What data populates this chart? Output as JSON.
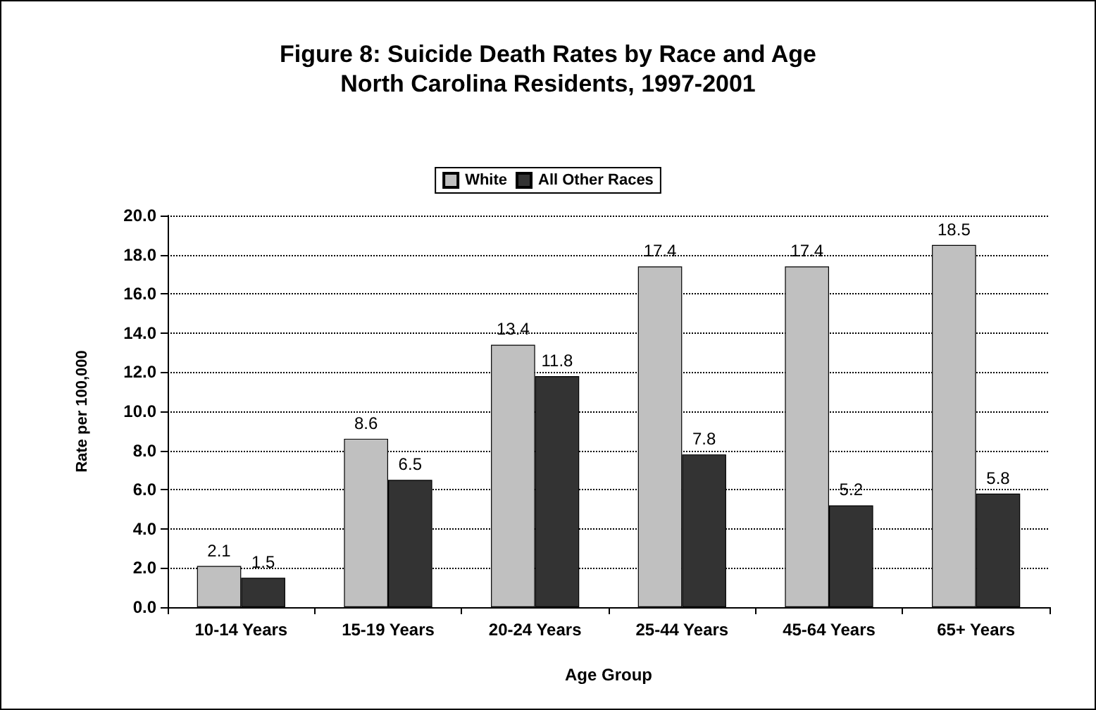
{
  "chart_data": {
    "type": "bar",
    "title": "Figure 8: Suicide Death Rates by Race and Age\nNorth Carolina Residents, 1997-2001",
    "xlabel": "Age Group",
    "ylabel": "Rate per 100,000",
    "categories": [
      "10-14 Years",
      "15-19 Years",
      "20-24 Years",
      "25-44 Years",
      "45-64 Years",
      "65+ Years"
    ],
    "series": [
      {
        "name": "White",
        "color": "#c0c0c0",
        "values": [
          2.1,
          8.6,
          13.4,
          17.4,
          17.4,
          18.5
        ]
      },
      {
        "name": "All Other Races",
        "color": "#333333",
        "values": [
          1.5,
          6.5,
          11.8,
          7.8,
          5.2,
          5.8
        ]
      }
    ],
    "ylim": [
      0,
      20
    ],
    "yticks": [
      {
        "value": 0,
        "label": "0.0"
      },
      {
        "value": 2,
        "label": "2.0"
      },
      {
        "value": 4,
        "label": "4.0"
      },
      {
        "value": 6,
        "label": "6.0"
      },
      {
        "value": 8,
        "label": "8.0"
      },
      {
        "value": 10,
        "label": "10.0"
      },
      {
        "value": 12,
        "label": "12.0"
      },
      {
        "value": 14,
        "label": "14.0"
      },
      {
        "value": 16,
        "label": "16.0"
      },
      {
        "value": 18,
        "label": "18.0"
      },
      {
        "value": 20,
        "label": "20.0"
      }
    ],
    "grid": "y",
    "legend": "top",
    "data_labels": true
  }
}
